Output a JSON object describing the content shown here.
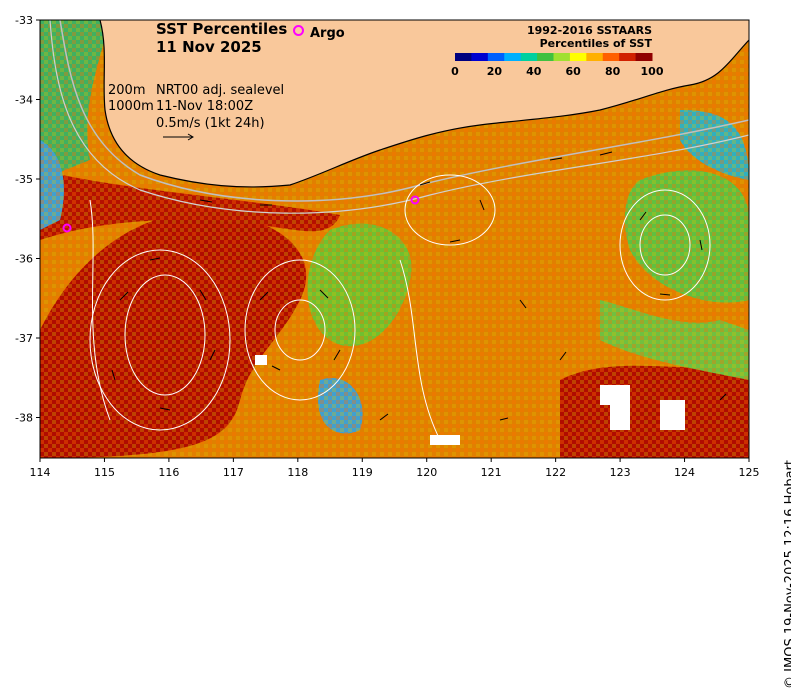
{
  "title": {
    "line1": "SST Percentiles",
    "line2": "11 Nov 2025"
  },
  "argo_key": {
    "label": "Argo",
    "marker_color": "#ff00ff"
  },
  "info": {
    "depth_200": "200m",
    "depth_1000": "1000m",
    "product": "NRT00 adj. sealevel",
    "time": "11-Nov 18:00Z",
    "scale": "0.5m/s (1kt 24h)"
  },
  "colorbar": {
    "title1": "1992-2016 SSTAARS",
    "title2": "Percentiles of SST",
    "ticks": [
      "0",
      "20",
      "40",
      "60",
      "80",
      "100"
    ],
    "colors": [
      "#00007f",
      "#0000d0",
      "#0060ff",
      "#00b0ff",
      "#00d0a0",
      "#40c040",
      "#a0e030",
      "#ffff00",
      "#ffb000",
      "#ff6000",
      "#d02000",
      "#900000"
    ]
  },
  "axes": {
    "lon_ticks": [
      "114",
      "115",
      "116",
      "117",
      "118",
      "119",
      "120",
      "121",
      "122",
      "123",
      "124",
      "125"
    ],
    "lat_ticks": [
      "-33",
      "-34",
      "-35",
      "-36",
      "-37",
      "-38"
    ]
  },
  "credit": "© IMOS 19-Nov-2025 12:16 Hobart",
  "colors": {
    "land": "#f9c89b",
    "warm": "#c01000",
    "mid": "#f0a000",
    "cool": "#30a0e0"
  }
}
